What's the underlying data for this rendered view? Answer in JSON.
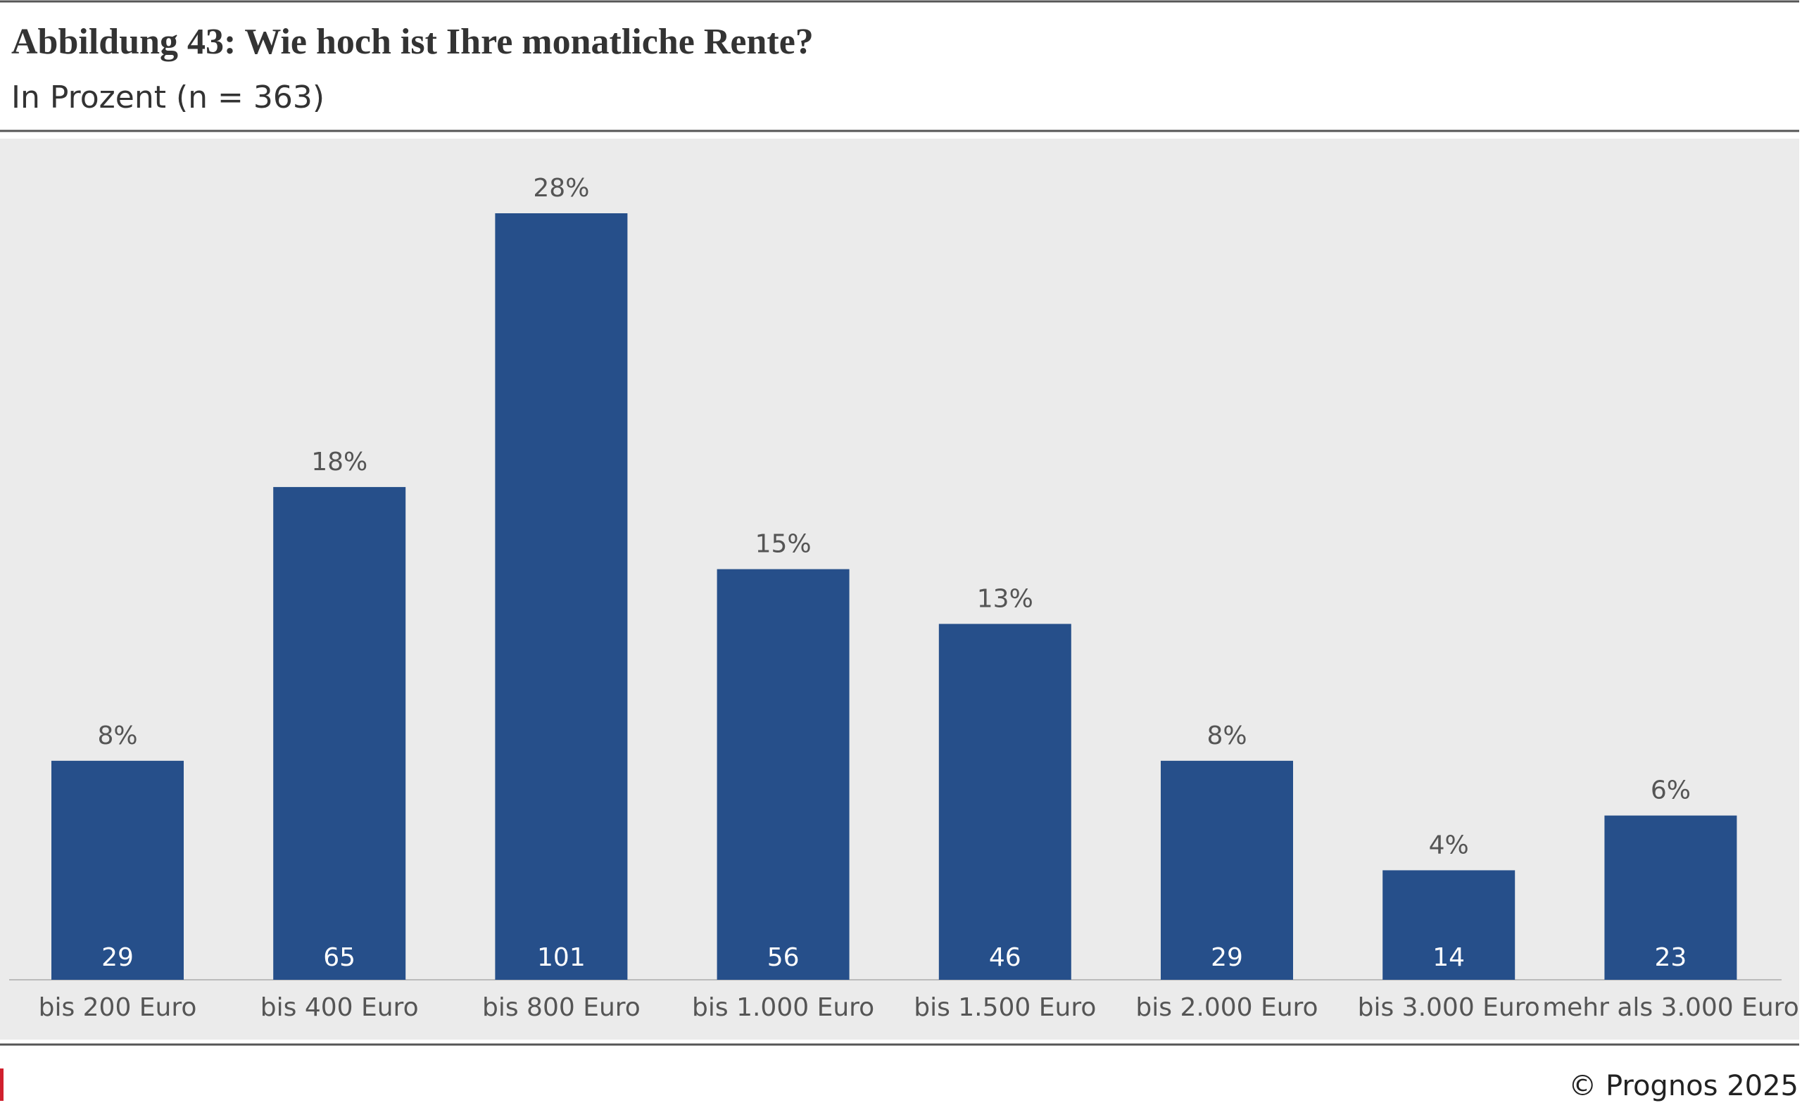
{
  "chart_data": {
    "type": "bar",
    "title": "Abbildung 43: Wie hoch ist Ihre monatliche Rente?",
    "subtitle": "In Prozent (n = 363)",
    "categories": [
      "bis 200 Euro",
      "bis 400 Euro",
      "bis 800 Euro",
      "bis 1.000 Euro",
      "bis 1.500 Euro",
      "bis 2.000 Euro",
      "bis 3.000 Euro",
      "mehr als 3.000 Euro"
    ],
    "values": [
      8,
      18,
      28,
      15,
      13,
      8,
      4,
      6
    ],
    "value_labels": [
      "8%",
      "18%",
      "28%",
      "15%",
      "13%",
      "8%",
      "4%",
      "6%"
    ],
    "counts": [
      29,
      65,
      101,
      56,
      46,
      29,
      14,
      23
    ],
    "color": "#264f8a",
    "footer": "© Prognos 2025"
  }
}
